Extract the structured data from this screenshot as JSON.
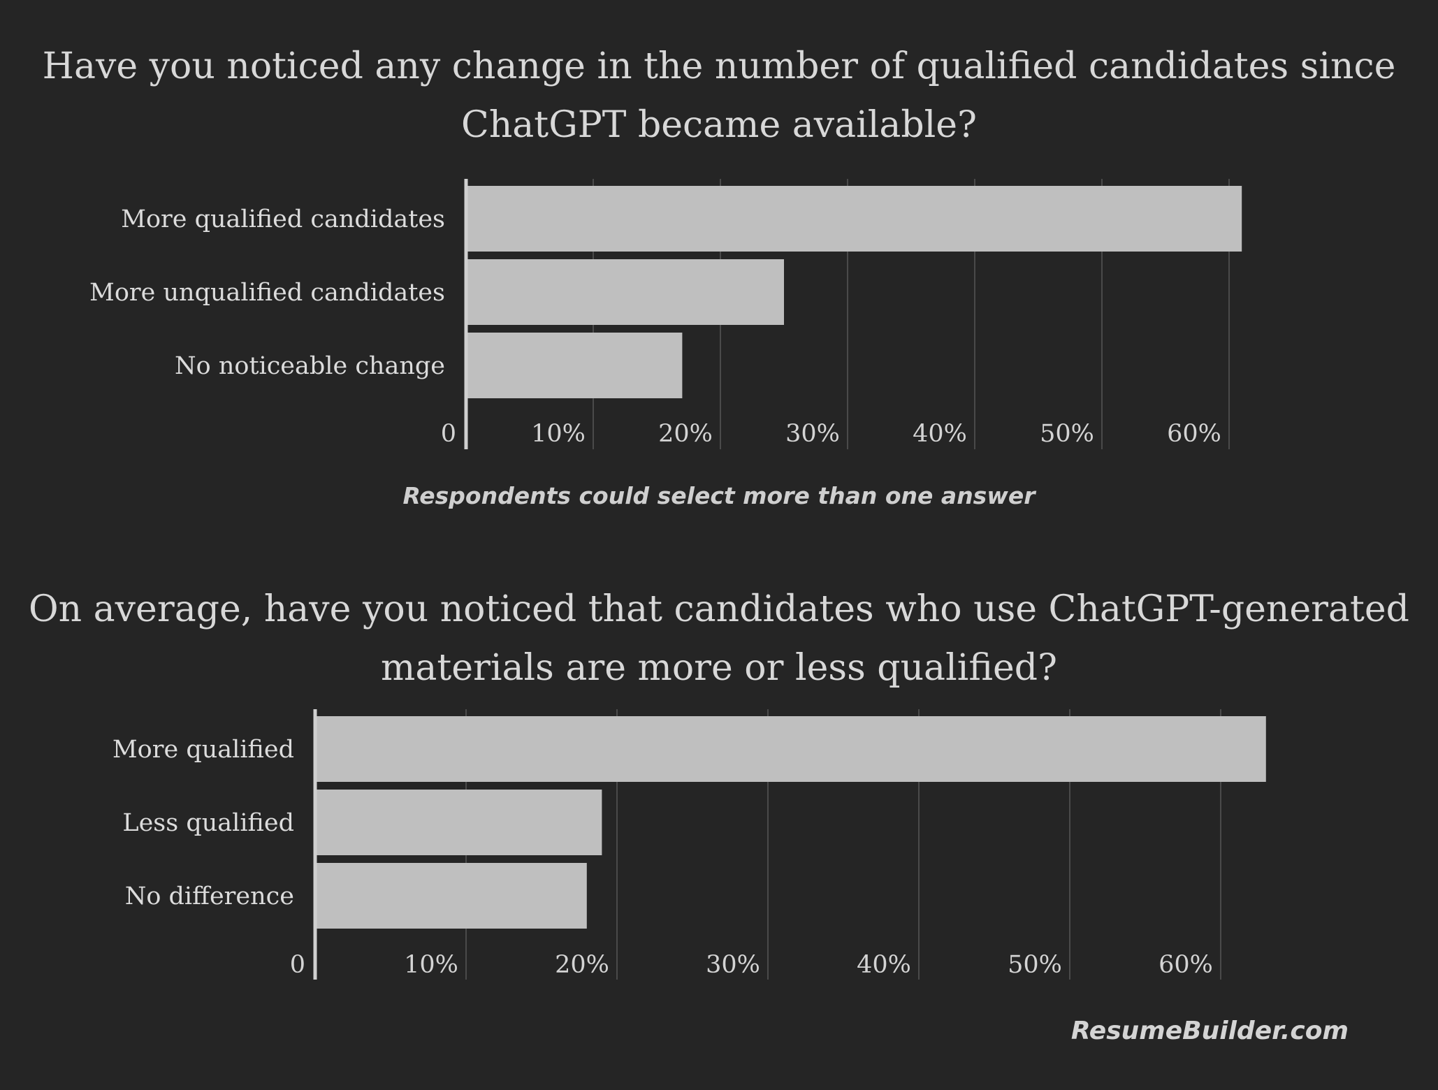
{
  "chart_data": [
    {
      "type": "bar",
      "orientation": "horizontal",
      "title": "Have you noticed any change in the number of qualified candidates since ChatGPT became available?",
      "categories": [
        "More qualified candidates",
        "More unqualified candidates",
        "No noticeable change"
      ],
      "values": [
        61,
        25,
        17
      ],
      "unit": "%",
      "xlim": [
        0,
        65
      ],
      "ticks": [
        "0",
        "10%",
        "20%",
        "30%",
        "40%",
        "50%",
        "60%"
      ],
      "note": "Respondents could select more than one answer",
      "grid": true,
      "bar_color": "#bfbfbf"
    },
    {
      "type": "bar",
      "orientation": "horizontal",
      "title": "On average, have you noticed that candidates who use ChatGPT-generated materials are more or less qualified?",
      "categories": [
        "More qualified",
        "Less qualified",
        "No difference"
      ],
      "values": [
        63,
        19,
        18
      ],
      "unit": "%",
      "xlim": [
        0,
        65
      ],
      "ticks": [
        "0",
        "10%",
        "20%",
        "30%",
        "40%",
        "50%",
        "60%"
      ],
      "grid": true,
      "bar_color": "#bfbfbf"
    }
  ],
  "footer": "ResumeBuilder.com"
}
